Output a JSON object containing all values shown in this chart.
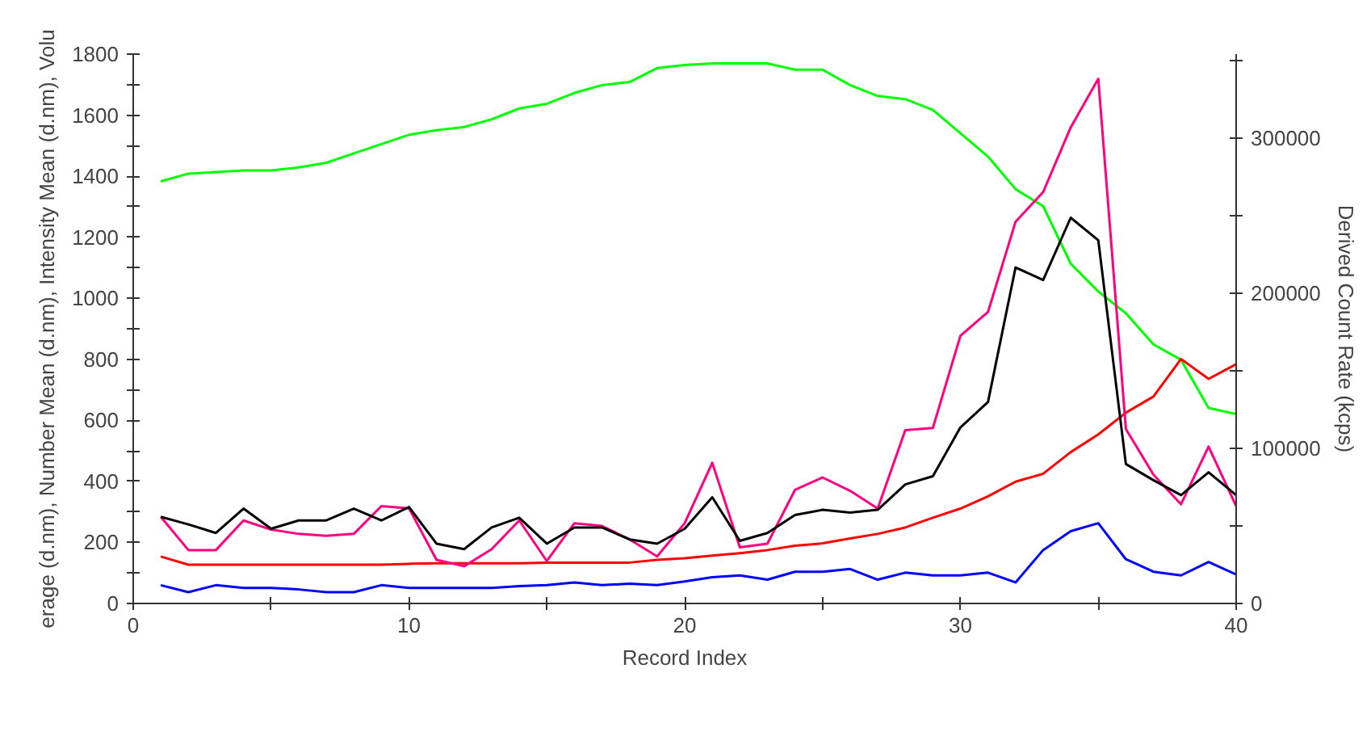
{
  "chart_data": {
    "type": "line",
    "xlabel": "Record Index",
    "ylabel": "erage (d.nm), Number Mean (d.nm), Intensity Mean (d.nm), Volu",
    "y2label": "Derived Count Rate (kcps)",
    "x": [
      1,
      2,
      3,
      4,
      5,
      6,
      7,
      8,
      9,
      10,
      11,
      12,
      13,
      14,
      15,
      16,
      17,
      18,
      19,
      20,
      21,
      22,
      23,
      24,
      25,
      26,
      27,
      28,
      29,
      30,
      31,
      32,
      33,
      34,
      35,
      36,
      37,
      38,
      39,
      40
    ],
    "xlim": [
      0,
      40
    ],
    "xticks": [
      0,
      {
        "value": 5,
        "label": null
      },
      10,
      {
        "value": 15,
        "label": null
      },
      20,
      {
        "value": 25,
        "label": null
      },
      30,
      {
        "value": 35,
        "label": null
      },
      40
    ],
    "ylim": [
      0,
      1800
    ],
    "yticks": [
      0,
      {
        "value": 100,
        "label": null
      },
      200,
      {
        "value": 300,
        "label": null
      },
      400,
      {
        "value": 500,
        "label": null
      },
      600,
      {
        "value": 700,
        "label": null
      },
      800,
      {
        "value": 900,
        "label": null
      },
      1000,
      {
        "value": 1100,
        "label": null
      },
      1200,
      {
        "value": 1300,
        "label": null
      },
      1400,
      {
        "value": 1500,
        "label": null
      },
      1600,
      {
        "value": 1700,
        "label": null
      },
      1800
    ],
    "y2lim": [
      0,
      354000
    ],
    "y2ticks": [
      0,
      {
        "value": 50000,
        "label": null
      },
      100000,
      {
        "value": 150000,
        "label": null
      },
      200000,
      {
        "value": 250000,
        "label": null
      },
      300000,
      {
        "value": 350000,
        "label": null
      }
    ],
    "grid": false,
    "marker": "none",
    "line_style": "solid",
    "series": [
      {
        "color": "#00ff00",
        "axis": "y2",
        "values": [
          272000,
          277000,
          278000,
          279000,
          279000,
          281000,
          284000,
          290000,
          296000,
          302000,
          305000,
          307000,
          312000,
          319000,
          322000,
          329000,
          334000,
          336000,
          345000,
          347000,
          348000,
          348000,
          348000,
          344000,
          344000,
          334000,
          327000,
          325000,
          318000,
          303000,
          288000,
          267000,
          256000,
          219000,
          201000,
          187000,
          167000,
          157000,
          126000,
          122000
        ]
      },
      {
        "color": "#ff0000",
        "values": [
          154,
          127,
          127,
          127,
          127,
          127,
          127,
          127,
          127,
          130,
          132,
          132,
          132,
          132,
          134,
          134,
          134,
          134,
          143,
          148,
          157,
          165,
          175,
          189,
          197,
          213,
          228,
          249,
          281,
          311,
          351,
          399,
          425,
          496,
          554,
          625,
          678,
          801,
          736,
          784
        ]
      },
      {
        "color": "#ff0080",
        "values": [
          284,
          175,
          175,
          272,
          242,
          228,
          222,
          228,
          319,
          312,
          143,
          122,
          178,
          272,
          139,
          263,
          254,
          210,
          154,
          263,
          461,
          184,
          196,
          372,
          413,
          369,
          311,
          568,
          575,
          877,
          955,
          1251,
          1348,
          1560,
          1719,
          572,
          422,
          325,
          514,
          319
        ]
      },
      {
        "color": "#000000",
        "values": [
          284,
          259,
          231,
          311,
          245,
          272,
          272,
          311,
          272,
          316,
          196,
          178,
          249,
          281,
          196,
          249,
          249,
          210,
          196,
          245,
          348,
          205,
          231,
          290,
          307,
          298,
          307,
          390,
          417,
          577,
          660,
          1101,
          1060,
          1264,
          1190,
          457,
          404,
          355,
          430,
          355
        ]
      },
      {
        "color": "#0000ff",
        "values": [
          60,
          37,
          60,
          51,
          51,
          46,
          37,
          37,
          60,
          51,
          51,
          51,
          51,
          57,
          60,
          69,
          60,
          65,
          60,
          72,
          86,
          92,
          78,
          104,
          104,
          113,
          78,
          101,
          92,
          92,
          101,
          69,
          175,
          237,
          263,
          145,
          104,
          92,
          136,
          95
        ]
      }
    ]
  }
}
